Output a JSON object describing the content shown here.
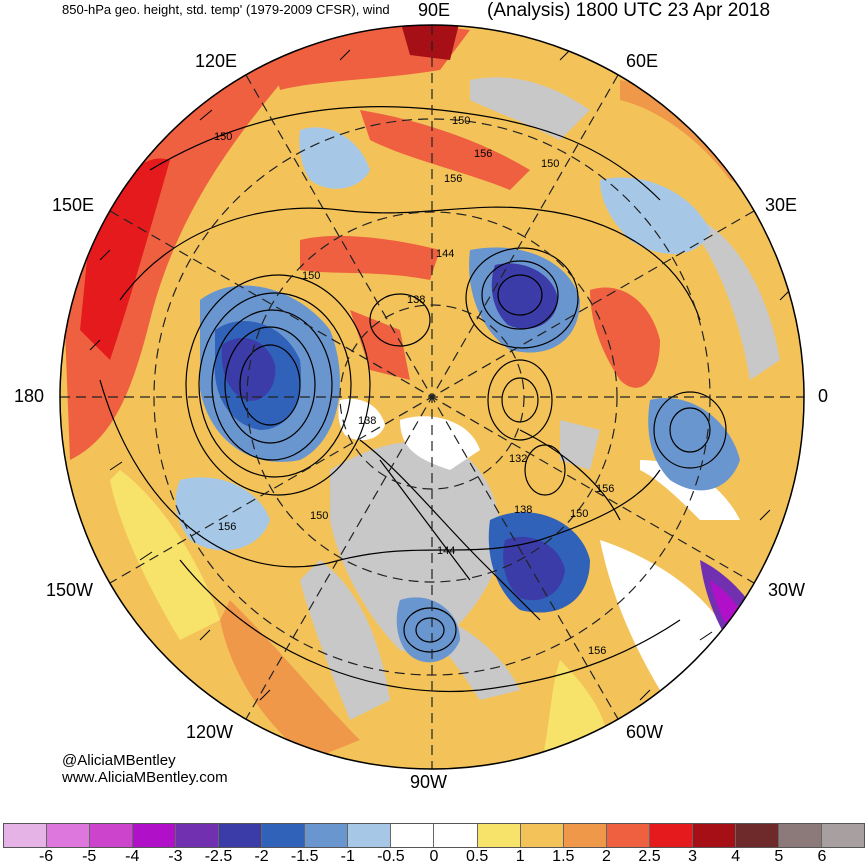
{
  "header": {
    "title_left": "850-hPa geo. height, std. temp' (1979-2009 CFSR), wind",
    "title_right": "(Analysis) 1800 UTC 23 Apr 2018"
  },
  "map": {
    "projection": "north-polar-stereographic",
    "longitude_labels": {
      "lon_90e": "90E",
      "lon_60e": "60E",
      "lon_30e": "30E",
      "lon_0": "0",
      "lon_30w": "30W",
      "lon_60w": "60W",
      "lon_90w": "90W",
      "lon_120w": "120W",
      "lon_150w": "150W",
      "lon_180": "180",
      "lon_150e": "150E",
      "lon_120e": "120E"
    },
    "contour_labels": [
      "150",
      "156",
      "156",
      "150",
      "150",
      "144",
      "138",
      "150",
      "138",
      "132",
      "138",
      "150",
      "156",
      "150",
      "156",
      "144",
      "156"
    ]
  },
  "credit": {
    "handle": "@AliciaMBentley",
    "website": "www.AliciaMBentley.com"
  },
  "colorbar": {
    "colors": [
      "#e6b3e6",
      "#dd77dd",
      "#cc44cc",
      "#b010c8",
      "#7030b0",
      "#3c3ca8",
      "#2f62b8",
      "#6a96d0",
      "#a6c8e6",
      "#ffffff",
      "#ffffff",
      "#f8e36a",
      "#f3c35a",
      "#f0984a",
      "#ee6040",
      "#e41a1c",
      "#a50f15",
      "#6e2a2a",
      "#8c7a7a",
      "#a8a0a0"
    ],
    "tick_labels": [
      "-6",
      "-5",
      "-4",
      "-3",
      "-2.5",
      "-2",
      "-1.5",
      "-1",
      "-0.5",
      "0",
      "0.5",
      "1",
      "1.5",
      "2",
      "2.5",
      "3",
      "4",
      "5",
      "6"
    ]
  }
}
